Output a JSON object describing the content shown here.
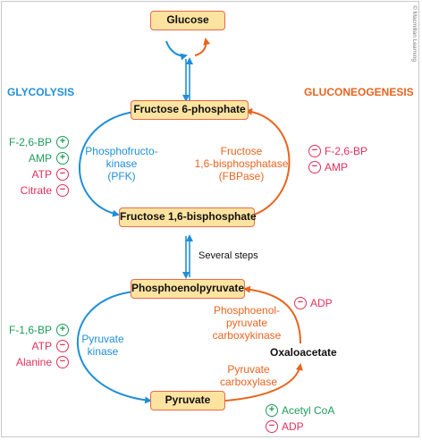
{
  "pathway": {
    "metabolites": {
      "glucose": "Glucose",
      "fructose_6_phosphate": "Fructose 6-phosphate",
      "fructose_1_6_bisphosphate": "Fructose 1,6-bisphosphate",
      "phosphoenolpyruvate": "Phosphoenolpyruvate",
      "pyruvate": "Pyruvate",
      "oxaloacetate": "Oxaloacetate"
    },
    "pathway_labels": {
      "glycolysis": "GLYCOLYSIS",
      "gluconeogenesis": "GLUCONEOGENESIS"
    },
    "enzymes": {
      "pfk": [
        "Phosphofructo-",
        "kinase",
        "(PFK)"
      ],
      "fbpase": [
        "Fructose",
        "1,6-bisphosphatase",
        "(FBPase)"
      ],
      "pyruvate_kinase": [
        "Pyruvate",
        "kinase"
      ],
      "pep_carboxykinase": [
        "Phosphoenol-",
        "pyruvate",
        "carboxykinase"
      ],
      "pyruvate_carboxylase": [
        "Pyruvate",
        "carboxylase"
      ]
    },
    "several_steps": "Several steps",
    "regulators": {
      "pfk": [
        {
          "name": "F-2,6-BP",
          "effect": "+"
        },
        {
          "name": "AMP",
          "effect": "+"
        },
        {
          "name": "ATP",
          "effect": "−"
        },
        {
          "name": "Citrate",
          "effect": "−"
        }
      ],
      "fbpase": [
        {
          "name": "F-2,6-BP",
          "effect": "−"
        },
        {
          "name": "AMP",
          "effect": "−"
        }
      ],
      "pyruvate_kinase": [
        {
          "name": "F-1,6-BP",
          "effect": "+"
        },
        {
          "name": "ATP",
          "effect": "−"
        },
        {
          "name": "Alanine",
          "effect": "−"
        }
      ],
      "pep_carboxykinase": [
        {
          "name": "ADP",
          "effect": "−"
        }
      ],
      "pyruvate_carboxylase": [
        {
          "name": "Acetyl CoA",
          "effect": "+"
        },
        {
          "name": "ADP",
          "effect": "−"
        }
      ]
    },
    "credit": "© Macmillan Learning"
  },
  "colors": {
    "glycolysis_blue": "#1f8fd6",
    "gluconeogenesis_orange": "#e8641e",
    "activator_green": "#1f9b5a",
    "inhibitor_red": "#e0305a",
    "box_fill": "#fde3a0",
    "box_border": "#e86a4a"
  }
}
